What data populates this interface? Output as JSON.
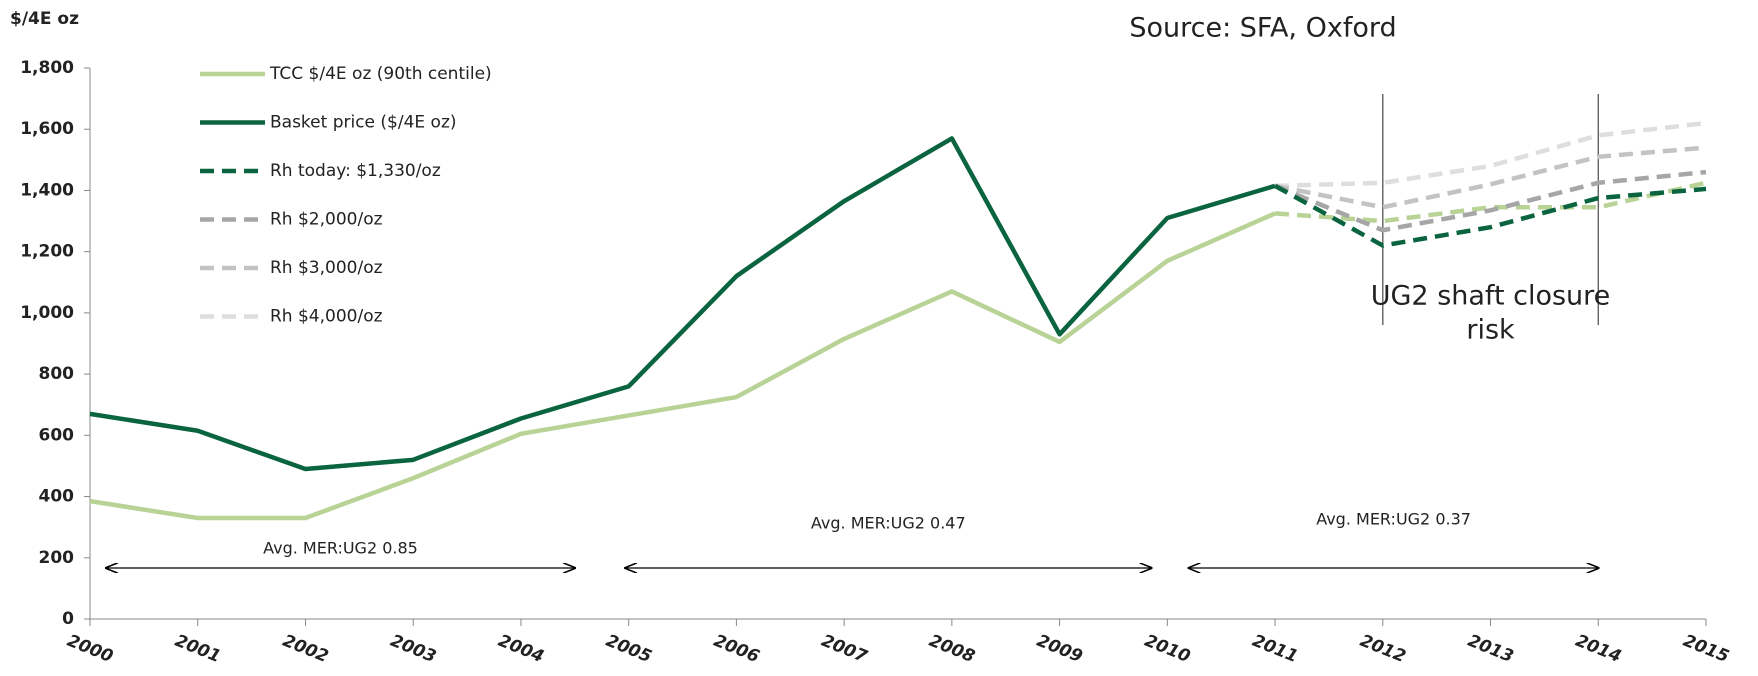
{
  "chart_data": {
    "type": "line",
    "y_axis_label": "$/4E oz",
    "source": "Source: SFA, Oxford",
    "x": [
      2000,
      2001,
      2002,
      2003,
      2004,
      2005,
      2006,
      2007,
      2008,
      2009,
      2010,
      2011,
      2012,
      2013,
      2014,
      2015
    ],
    "xlim": [
      2000,
      2015
    ],
    "xticks": [
      2000,
      2001,
      2002,
      2003,
      2004,
      2005,
      2006,
      2007,
      2008,
      2009,
      2010,
      2011,
      2012,
      2013,
      2014,
      2015
    ],
    "ylim": [
      0,
      1800
    ],
    "yticks": [
      0,
      200,
      400,
      600,
      800,
      {
        "value": 1000,
        "label": "1,000"
      },
      {
        "value": 1200,
        "label": "1,200"
      },
      {
        "value": 1400,
        "label": "1,400"
      },
      {
        "value": 1600,
        "label": "1,600"
      },
      {
        "value": 1800,
        "label": "1,800"
      }
    ],
    "series": [
      {
        "name": "TCC $/4E oz (90th centile)",
        "color": "#b8d395",
        "dashed": false,
        "values": [
          385,
          330,
          330,
          460,
          605,
          665,
          725,
          915,
          1070,
          905,
          1170,
          1325,
          null,
          null,
          null,
          null
        ]
      },
      {
        "name": "Basket price ($/4E oz)",
        "color": "#0b6440",
        "dashed": false,
        "values": [
          670,
          615,
          490,
          520,
          655,
          760,
          1120,
          1365,
          1570,
          930,
          1310,
          1415,
          null,
          null,
          null,
          null
        ]
      },
      {
        "name": "Rh today: $1,330/oz",
        "color": "#0b6440",
        "dashed": true,
        "values": [
          null,
          null,
          null,
          null,
          null,
          null,
          null,
          null,
          null,
          null,
          null,
          1415,
          1220,
          1280,
          1375,
          1405
        ]
      },
      {
        "name": "Rh $2,000/oz",
        "color": "#a6a6a6",
        "dashed": true,
        "values": [
          null,
          null,
          null,
          null,
          null,
          null,
          null,
          null,
          null,
          null,
          null,
          1415,
          1270,
          1335,
          1425,
          1460
        ]
      },
      {
        "name": "Rh $3,000/oz",
        "color": "#c3c3c3",
        "dashed": true,
        "values": [
          null,
          null,
          null,
          null,
          null,
          null,
          null,
          null,
          null,
          null,
          null,
          1415,
          1345,
          1420,
          1510,
          1540
        ]
      },
      {
        "name": "Rh $4,000/oz",
        "color": "#dedede",
        "dashed": true,
        "values": [
          null,
          null,
          null,
          null,
          null,
          null,
          null,
          null,
          null,
          null,
          null,
          1415,
          1425,
          1480,
          1580,
          1620
        ]
      },
      {
        "color": "#b8d395",
        "dashed": true,
        "values": [
          null,
          null,
          null,
          null,
          null,
          null,
          null,
          null,
          null,
          null,
          null,
          1325,
          1300,
          1345,
          1345,
          1425
        ]
      }
    ],
    "annotations": [
      "Avg. MER:UG2 0.85",
      "Avg. MER:UG2 0.47",
      "Avg. MER:UG2 0.37"
    ],
    "risk_label": [
      "UG2 shaft closure",
      "risk"
    ]
  }
}
